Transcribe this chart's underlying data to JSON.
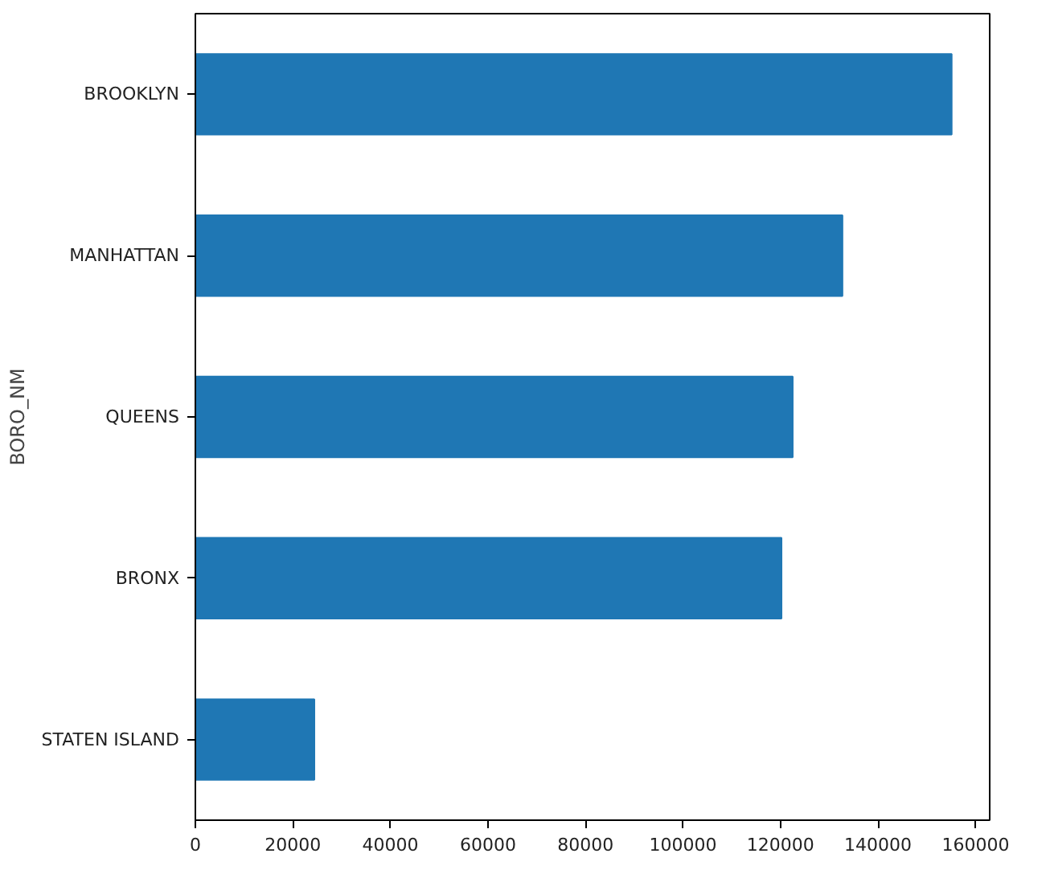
{
  "chart_data": {
    "type": "bar",
    "orientation": "horizontal",
    "ylabel": "BORO_NM",
    "categories": [
      "BROOKLYN",
      "MANHATTAN",
      "QUEENS",
      "BRONX",
      "STATEN ISLAND"
    ],
    "values": [
      155100,
      132700,
      122500,
      120200,
      24400
    ],
    "color": "#1f77b4",
    "xlim": [
      0,
      162900
    ],
    "xticks": [
      0,
      20000,
      40000,
      60000,
      80000,
      100000,
      120000,
      140000,
      160000
    ],
    "grid": false
  }
}
